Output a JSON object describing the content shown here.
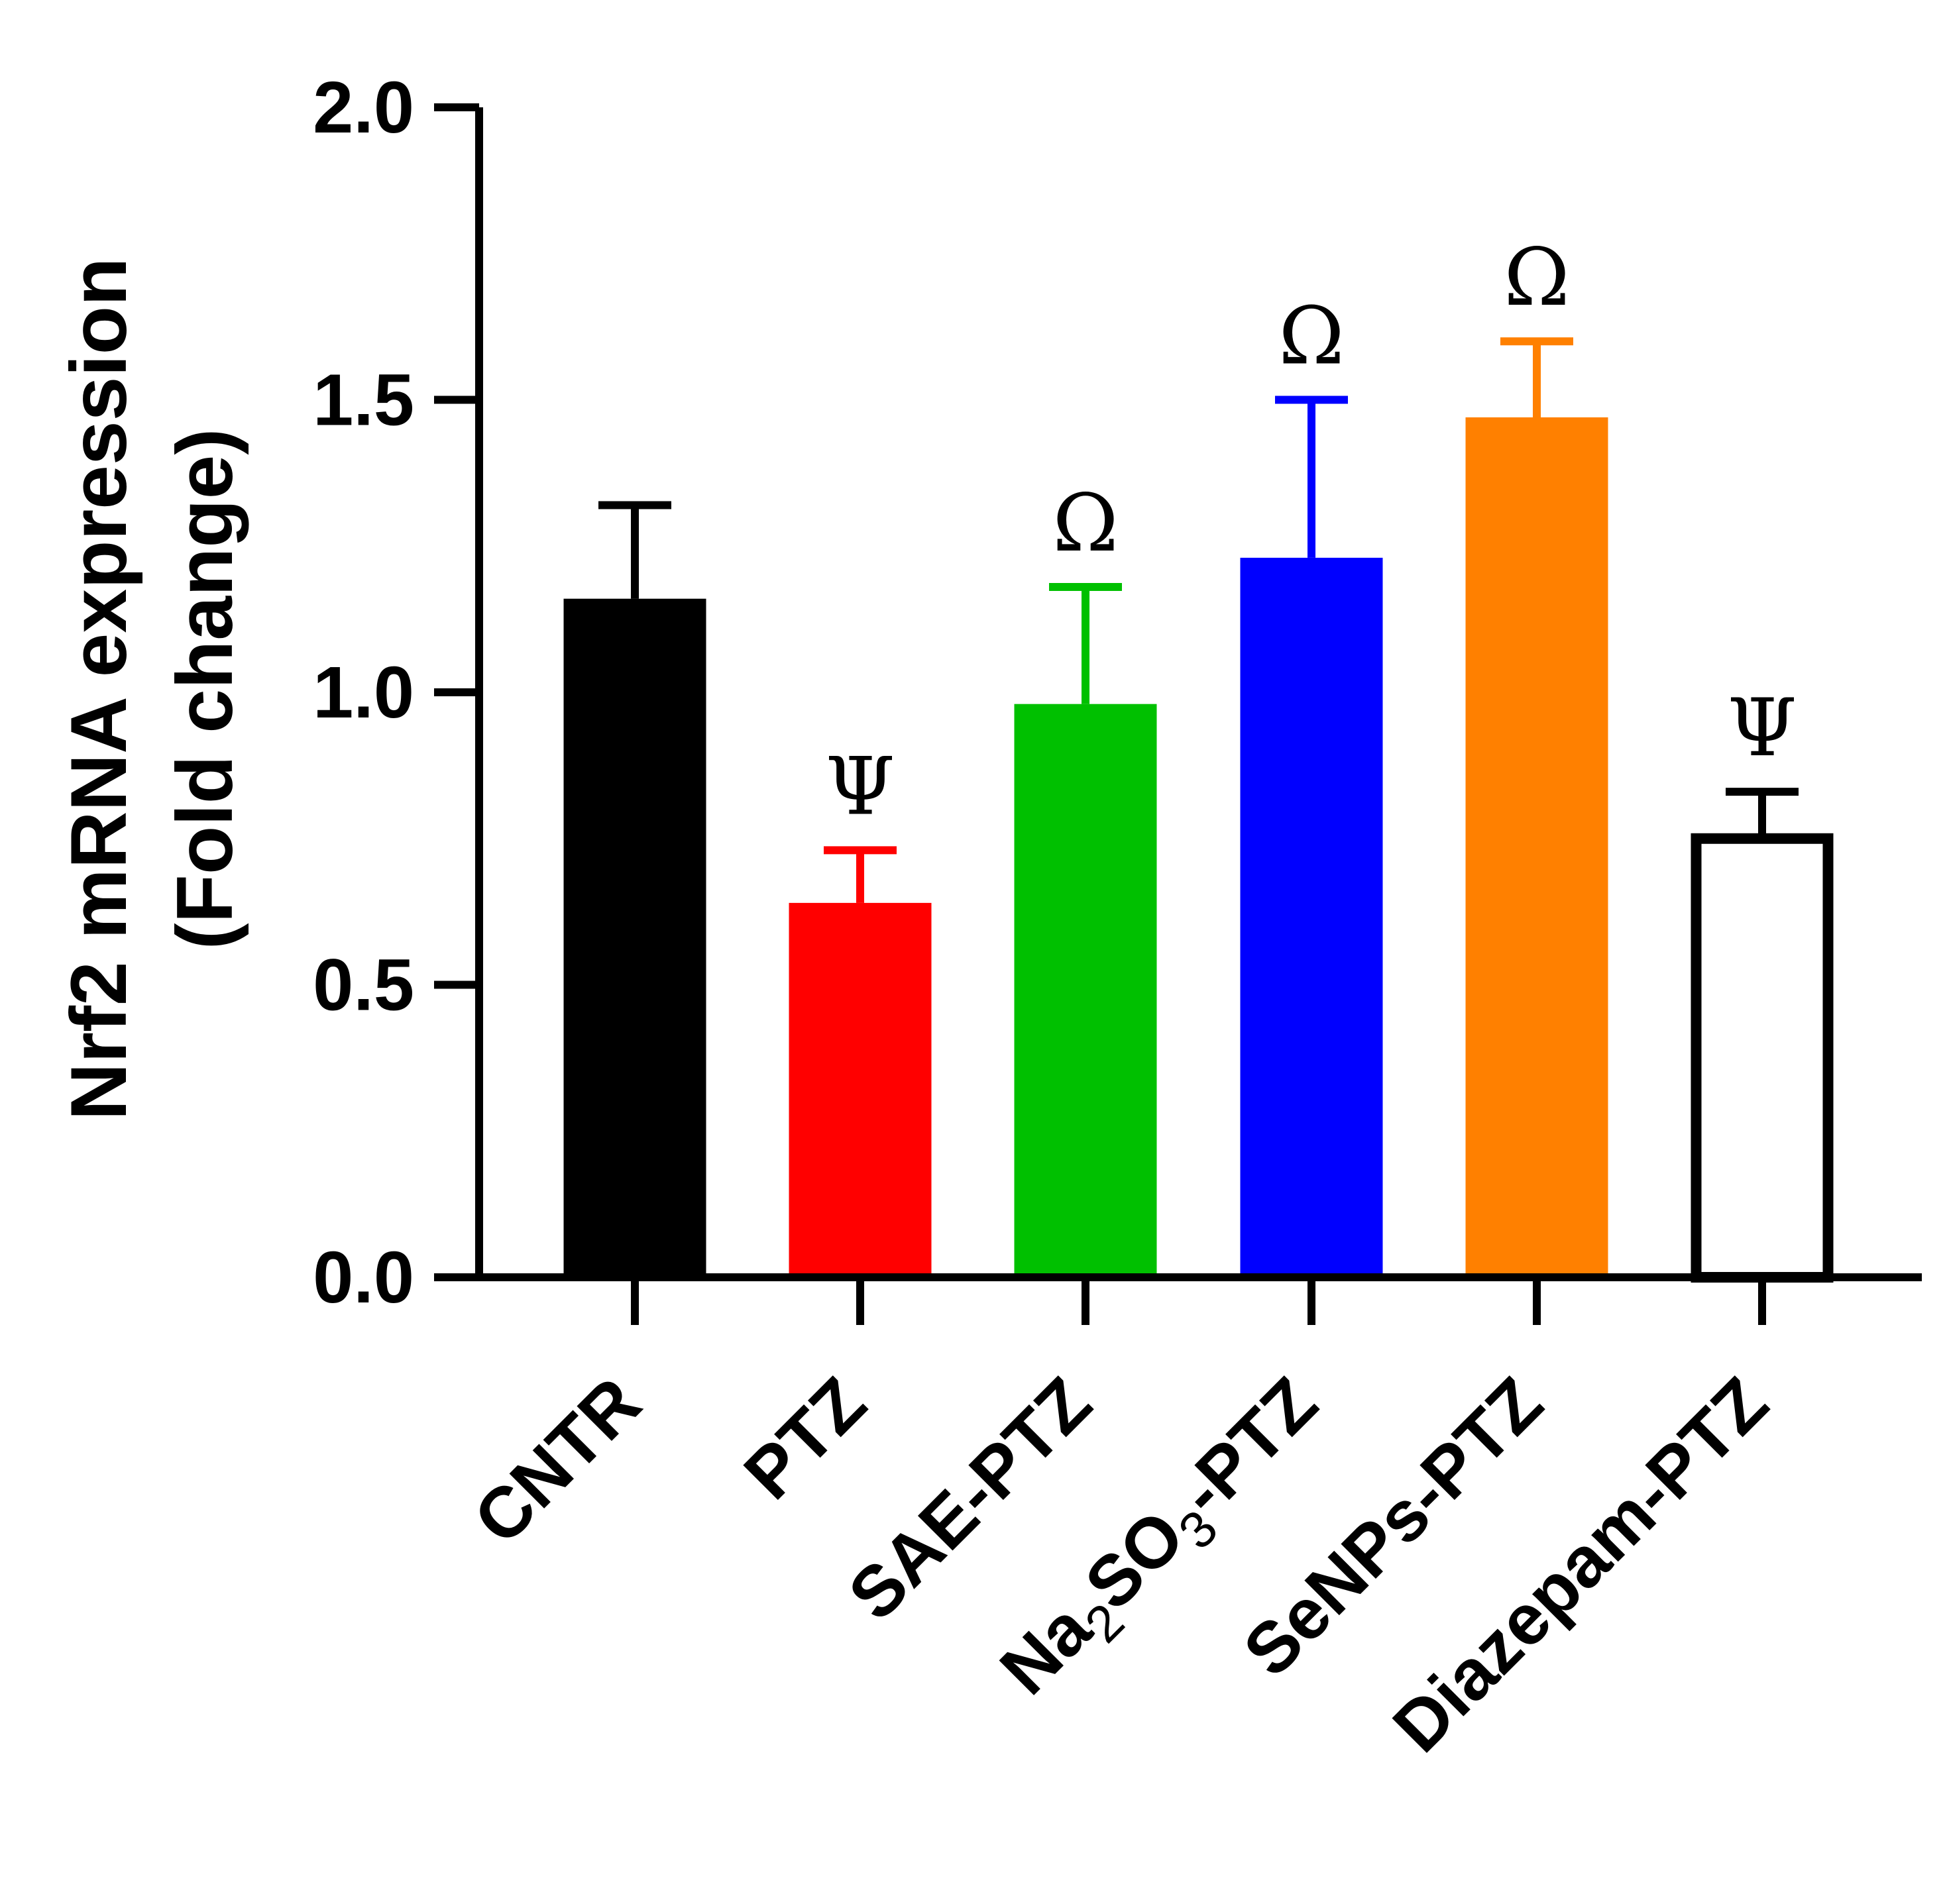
{
  "chart_data": {
    "type": "bar",
    "title": "",
    "xlabel": "",
    "ylabel": [
      "Nrf2 mRNA expression",
      "(Fold change)"
    ],
    "ylim": [
      0,
      2.0
    ],
    "yticks": [
      "0.0",
      "0.5",
      "1.0",
      "1.5",
      "2.0"
    ],
    "categories": [
      {
        "text": "CNTR"
      },
      {
        "text": "PTZ"
      },
      {
        "text": "SAE-PTZ"
      },
      {
        "pre": "Na",
        "sub1": "2",
        "mid": "SO",
        "sub2": "3",
        "post": "-PTZ"
      },
      {
        "text": "SeNPs-PTZ"
      },
      {
        "text": "Diazepam-PTZ"
      }
    ],
    "values": [
      1.16,
      0.64,
      0.98,
      1.23,
      1.47,
      0.75
    ],
    "errors": [
      0.16,
      0.09,
      0.2,
      0.27,
      0.13,
      0.08
    ],
    "annotations": [
      "",
      "Ψ",
      "Ω",
      "Ω",
      "Ω",
      "Ψ"
    ],
    "colors": [
      "#000000",
      "#ff0000",
      "#00c000",
      "#0000ff",
      "#ff8000",
      "#ffffff"
    ],
    "edge_colors": [
      "#000000",
      "#ff0000",
      "#00c000",
      "#0000ff",
      "#ff8000",
      "#000000"
    ]
  }
}
